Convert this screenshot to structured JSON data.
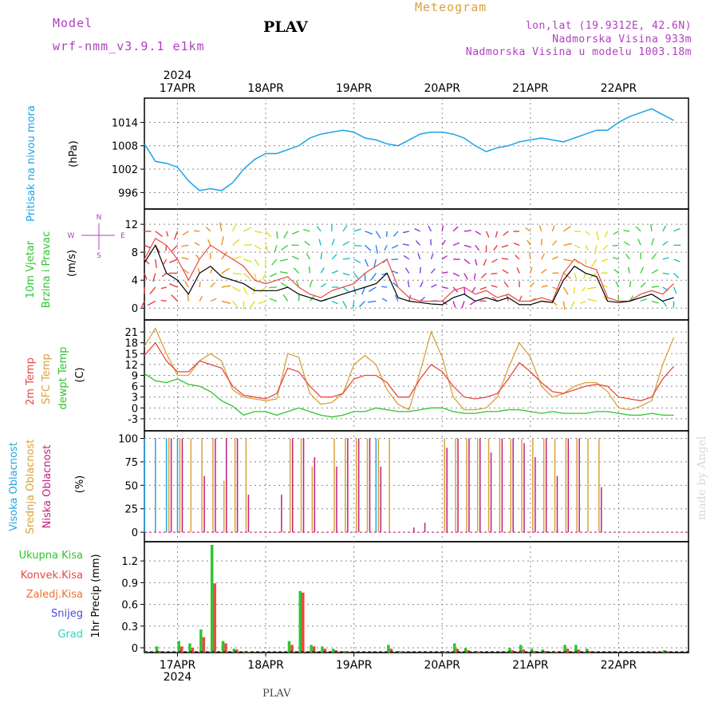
{
  "header": {
    "model_label": "Model",
    "model_name": "wrf-nmm_v3.9.1  e1km",
    "station": "PLAV",
    "product": "Meteogram",
    "lonlat": "lon,lat (19.9312E, 42.6N)",
    "elevation": "Nadmorska Visina 933m",
    "model_elevation": "Nadmorska Visina u modelu 1003.18m",
    "footer_station": "PLAV",
    "credit": "made by Angel"
  },
  "colors": {
    "pressure": "#1aa3e8",
    "temp2m": "#e8493f",
    "sfc_temp": "#d9a23a",
    "dewpt": "#2fc42f",
    "high_cloud": "#22a6e0",
    "mid_cloud": "#d9a23a",
    "low_cloud": "#c0207a",
    "total_precip": "#2fc42f",
    "conv_precip": "#e8493f",
    "frozen_precip": "#f07030",
    "snow": "#4a4ae0",
    "graupel": "#30d0c0",
    "magenta_text": "#b040c0"
  },
  "chart_data": [
    {
      "type": "line",
      "panel": "pressure",
      "ylabel_lines": [
        "Pritisak na nivou mora",
        "(hPa)"
      ],
      "xlabels": [
        "17APR",
        "18APR",
        "19APR",
        "20APR",
        "21APR",
        "22APR"
      ],
      "xlabel_top_year": "2024",
      "xlabel_bottom_year": "2024",
      "yticks": [
        996,
        1002,
        1008,
        1014
      ],
      "ylim": [
        993,
        1019
      ],
      "x": [
        0,
        3,
        6,
        9,
        12,
        15,
        18,
        21,
        24,
        27,
        30,
        33,
        36,
        39,
        42,
        45,
        48,
        51,
        54,
        57,
        60,
        63,
        66,
        69,
        72,
        75,
        78,
        81,
        84,
        87,
        90,
        93,
        96,
        99,
        102,
        105,
        108,
        111,
        114,
        117,
        120,
        123,
        126,
        129,
        132,
        135,
        138,
        141,
        144
      ],
      "series": [
        {
          "values": [
            1008.5,
            1004,
            1003.5,
            1002.5,
            999,
            996.5,
            997,
            996.5,
            998.5,
            1002,
            1004.5,
            1006,
            1006,
            1007,
            1008,
            1010,
            1011,
            1011.5,
            1012,
            1011.5,
            1010,
            1009.5,
            1008.5,
            1008,
            1009.5,
            1011,
            1011.5,
            1011.5,
            1011,
            1010,
            1008,
            1006.5,
            1007.5,
            1008,
            1009,
            1009.5,
            1010,
            1009.5,
            1009,
            1010,
            1011,
            1012,
            1012,
            1014,
            1015.5,
            1016.5,
            1017.5,
            1016,
            1014.5
          ]
        }
      ]
    },
    {
      "type": "line",
      "panel": "wind",
      "ylabel_lines": [
        "10m Vjetar",
        "Brzina i Pravac",
        "(m/s)"
      ],
      "compass": [
        "N",
        "W",
        "E",
        "S"
      ],
      "yticks": [
        0,
        4,
        8,
        12
      ],
      "ylim": [
        -1,
        13.5
      ],
      "x": [
        0,
        3,
        6,
        9,
        12,
        15,
        18,
        21,
        24,
        27,
        30,
        33,
        36,
        39,
        42,
        45,
        48,
        51,
        54,
        57,
        60,
        63,
        66,
        69,
        72,
        75,
        78,
        81,
        84,
        87,
        90,
        93,
        96,
        99,
        102,
        105,
        108,
        111,
        114,
        117,
        120,
        123,
        126,
        129,
        132,
        135,
        138,
        141,
        144
      ],
      "series": [
        {
          "name": "mean",
          "values": [
            6.5,
            9,
            5,
            4,
            2,
            5,
            6,
            4.5,
            4,
            3.5,
            2.5,
            2.5,
            2.5,
            3,
            2,
            1.5,
            1,
            1.5,
            2,
            2.5,
            3,
            3.5,
            5,
            1.5,
            1,
            0.8,
            0.6,
            0.5,
            1.5,
            2,
            1,
            1.5,
            1,
            1.5,
            0.5,
            0.5,
            1,
            0.8,
            4,
            6,
            5,
            4.5,
            1,
            0.8,
            1,
            1.5,
            2,
            1,
            1.5
          ]
        },
        {
          "name": "gust",
          "values": [
            7,
            10,
            9,
            7,
            4,
            7,
            9,
            8,
            7,
            6,
            4,
            3.5,
            4,
            4.5,
            3,
            2,
            1.5,
            2.5,
            3,
            3.5,
            5,
            6,
            7,
            3,
            1.5,
            1,
            1,
            1,
            2.5,
            3,
            2,
            2.5,
            1.5,
            2,
            1,
            1,
            1.5,
            1,
            5,
            7,
            6,
            5.5,
            1.5,
            1,
            1,
            2,
            2.5,
            2,
            3.5
          ]
        }
      ]
    },
    {
      "type": "line",
      "panel": "temperature",
      "ylabel_lines": [
        "2m Temp",
        "SFC Temp",
        "dewpt Temp",
        "(C)"
      ],
      "yticks": [
        -3,
        0,
        3,
        6,
        9,
        12,
        15,
        18,
        21
      ],
      "ylim": [
        -5,
        23
      ],
      "x": [
        0,
        3,
        6,
        9,
        12,
        15,
        18,
        21,
        24,
        27,
        30,
        33,
        36,
        39,
        42,
        45,
        48,
        51,
        54,
        57,
        60,
        63,
        66,
        69,
        72,
        75,
        78,
        81,
        84,
        87,
        90,
        93,
        96,
        99,
        102,
        105,
        108,
        111,
        114,
        117,
        120,
        123,
        126,
        129,
        132,
        135,
        138,
        141,
        144
      ],
      "series": [
        {
          "name": "2m Temp",
          "values": [
            14.5,
            18,
            13,
            10,
            10,
            13,
            12,
            11,
            6,
            3.5,
            3,
            2.5,
            4,
            11,
            10,
            6,
            3,
            3,
            4,
            8,
            9,
            9,
            7,
            3,
            3,
            8,
            12,
            10,
            6,
            3,
            2.5,
            3,
            4,
            8,
            12.5,
            10,
            7,
            4.5,
            4,
            5,
            6,
            6.5,
            6,
            3,
            2.5,
            2,
            3,
            8,
            11.5
          ]
        },
        {
          "name": "SFC Temp",
          "values": [
            17,
            22,
            15,
            9,
            9,
            13,
            15,
            13,
            5,
            3,
            2.5,
            2,
            2.5,
            15,
            14,
            4,
            1,
            1.5,
            4,
            12,
            14.5,
            12,
            5,
            1,
            -0.5,
            10,
            21,
            14,
            3,
            -0.5,
            -0.5,
            0,
            3,
            11,
            18,
            14,
            6,
            3,
            4,
            6,
            7,
            7,
            4.5,
            0,
            -0.5,
            0.5,
            2,
            12,
            19.5
          ]
        },
        {
          "name": "dewpt Temp",
          "values": [
            9.5,
            7.5,
            7,
            8,
            6.5,
            6,
            4.5,
            2,
            0.5,
            -2,
            -1,
            -1,
            -2,
            -1,
            0,
            -1,
            -2,
            -2.5,
            -2,
            -1,
            -1,
            0,
            -0.5,
            -1,
            -1,
            -0.5,
            0,
            0,
            -1,
            -1.5,
            -1.5,
            -1,
            -1,
            -0.5,
            -0.5,
            -1,
            -1.5,
            -1,
            -1.5,
            -1.5,
            -1.5,
            -1,
            -1,
            -1.5,
            -2,
            -2,
            -1.5,
            -2,
            -2
          ]
        }
      ]
    },
    {
      "type": "bar",
      "panel": "cloud",
      "ylabel_lines": [
        "Visoka Oblacnost",
        "Srednja Oblacnost",
        "Niska Oblacnost",
        "(%)"
      ],
      "yticks": [
        0,
        25,
        50,
        75,
        100
      ],
      "ylim": [
        -5,
        103
      ],
      "x": [
        0,
        3,
        6,
        9,
        12,
        15,
        18,
        21,
        24,
        27,
        30,
        33,
        36,
        39,
        42,
        45,
        48,
        51,
        54,
        57,
        60,
        63,
        66,
        69,
        72,
        75,
        78,
        81,
        84,
        87,
        90,
        93,
        96,
        99,
        102,
        105,
        108,
        111,
        114,
        117,
        120,
        123,
        126,
        129,
        132,
        135,
        138,
        141,
        144
      ],
      "series": [
        {
          "name": "Visoka Oblacnost",
          "values": [
            100,
            100,
            100,
            100,
            0,
            0,
            0,
            0,
            0,
            0,
            0,
            0,
            0,
            0,
            0,
            0,
            0,
            0,
            0,
            0,
            0,
            100,
            0,
            0,
            0,
            0,
            0,
            0,
            0,
            0,
            0,
            0,
            0,
            0,
            0,
            0,
            0,
            0,
            0,
            0,
            0,
            0,
            0,
            0,
            0,
            0,
            0,
            0,
            0
          ]
        },
        {
          "name": "Srednja Oblacnost",
          "values": [
            0,
            0,
            100,
            100,
            100,
            100,
            100,
            55,
            100,
            100,
            0,
            0,
            0,
            100,
            100,
            70,
            0,
            100,
            100,
            100,
            100,
            100,
            100,
            0,
            0,
            0,
            0,
            100,
            100,
            100,
            100,
            100,
            100,
            100,
            100,
            100,
            100,
            100,
            100,
            100,
            100,
            100,
            0,
            0,
            0,
            0,
            0,
            0,
            0
          ]
        },
        {
          "name": "Niska Oblacnost",
          "values": [
            0,
            0,
            100,
            100,
            0,
            60,
            100,
            100,
            100,
            40,
            0,
            0,
            40,
            100,
            100,
            80,
            0,
            70,
            100,
            100,
            100,
            70,
            0,
            0,
            5,
            10,
            0,
            90,
            100,
            100,
            100,
            85,
            100,
            100,
            95,
            80,
            100,
            60,
            100,
            100,
            0,
            48,
            0,
            0,
            0,
            0,
            0,
            0,
            0
          ]
        }
      ]
    },
    {
      "type": "bar",
      "panel": "precip",
      "ylabel_lines": [
        "1hr Precip (mm)"
      ],
      "legend": [
        "Ukupna Kisa",
        "Konvek.Kisa",
        "Zaledj.Kisa",
        "Snijeg",
        "Grad"
      ],
      "yticks": [
        0,
        0.3,
        0.6,
        0.9,
        1.2
      ],
      "ylim": [
        0,
        1.4
      ],
      "x": [
        0,
        3,
        6,
        9,
        12,
        15,
        18,
        21,
        24,
        27,
        30,
        33,
        36,
        39,
        42,
        45,
        48,
        51,
        54,
        57,
        60,
        63,
        66,
        69,
        72,
        75,
        78,
        81,
        84,
        87,
        90,
        93,
        96,
        99,
        102,
        105,
        108,
        111,
        114,
        117,
        120,
        123,
        126,
        129,
        132,
        135,
        138,
        141,
        144
      ],
      "series": [
        {
          "name": "Ukupna Kisa",
          "values": [
            0.02,
            0.08,
            0,
            0.15,
            0.12,
            0.3,
            1.4,
            0.15,
            0.05,
            0.02,
            0,
            0,
            0,
            0.15,
            0.8,
            0.1,
            0.08,
            0.05,
            0.02,
            0,
            0,
            0,
            0.1,
            0.02,
            0,
            0,
            0,
            0.02,
            0.12,
            0.06,
            0.02,
            0,
            0,
            0.06,
            0.1,
            0.05,
            0.04,
            0.02,
            0.1,
            0.1,
            0.05,
            0,
            0,
            0,
            0,
            0,
            0,
            0.03,
            0
          ]
        },
        {
          "name": "Konvek.Kisa",
          "values": [
            0,
            0.02,
            0,
            0.08,
            0.06,
            0.2,
            0.9,
            0.12,
            0.04,
            0.01,
            0,
            0,
            0,
            0.1,
            0.78,
            0.08,
            0.05,
            0.03,
            0.01,
            0,
            0,
            0,
            0.05,
            0.01,
            0,
            0,
            0,
            0.01,
            0.05,
            0.03,
            0.01,
            0,
            0,
            0.03,
            0.04,
            0.02,
            0.02,
            0.01,
            0.05,
            0.04,
            0.02,
            0,
            0,
            0,
            0,
            0,
            0,
            0.02,
            0
          ]
        }
      ]
    }
  ]
}
